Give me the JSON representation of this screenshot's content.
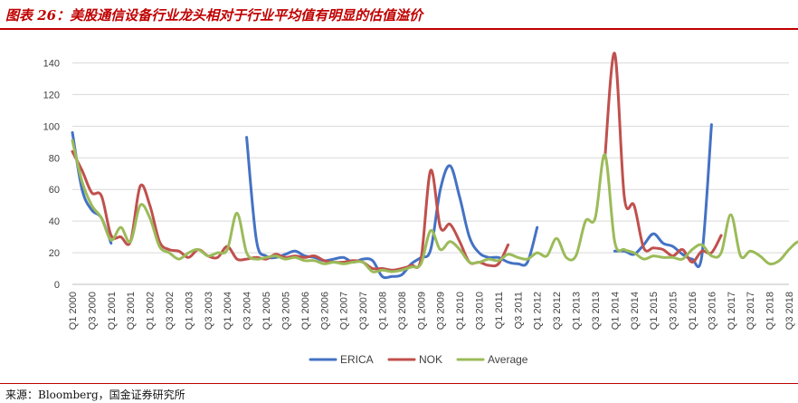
{
  "figure_title": "图表 26：美股通信设备行业龙头相对于行业平均值有明显的估值溢价",
  "source_note": "来源：Bloomberg，国金证券研究所",
  "chart_data": {
    "type": "line",
    "ylim": [
      0,
      150
    ],
    "yticks": [
      0,
      20,
      40,
      60,
      80,
      100,
      120,
      140
    ],
    "grid": "horizontal",
    "legend_position": "bottom",
    "xtick_labels": [
      "Q1 2000",
      "Q3 2000",
      "Q1 2001",
      "Q3 2001",
      "Q1 2002",
      "Q3 2002",
      "Q1 2003",
      "Q3 2003",
      "Q1 2004",
      "Q3 2004",
      "Q1 2005",
      "Q3 2005",
      "Q1 2006",
      "Q3 2006",
      "Q1 2007",
      "Q3 2007",
      "Q1 2008",
      "Q3 2008",
      "Q1 2009",
      "Q3 2009",
      "Q1 2010",
      "Q3 2010",
      "Q1 2011",
      "Q3 2011",
      "Q1 2012",
      "Q3 2012",
      "Q1 2013",
      "Q3 2013",
      "Q1 2014",
      "Q3 2014",
      "Q1 2015",
      "Q3 2015",
      "Q1 2016",
      "Q3 2016",
      "Q1 2017",
      "Q3 2017",
      "Q1 2018",
      "Q3 2018"
    ],
    "series": [
      {
        "name": "ERICA",
        "color": "#4472c4",
        "segments": [
          {
            "start": "Q1 2000",
            "values": [
              96,
              60,
              47,
              42,
              26
            ]
          },
          {
            "start": "Q3 2004",
            "values": [
              93,
              28,
              18,
              17,
              19,
              21,
              18,
              17,
              15,
              16,
              17,
              14,
              16,
              15,
              5,
              5,
              6,
              13,
              17,
              22,
              60,
              75,
              55,
              30,
              20,
              17,
              17,
              14,
              13,
              14,
              36
            ]
          },
          {
            "start": "Q1 2014",
            "values": [
              21,
              21,
              19,
              25,
              32,
              26,
              24,
              19,
              16,
              18,
              101
            ]
          }
        ]
      },
      {
        "name": "NOK",
        "color": "#c0504d",
        "segments": [
          {
            "start": "Q1 2000",
            "values": [
              84,
              72,
              58,
              56,
              31,
              30,
              27,
              62,
              50,
              27,
              22,
              21,
              17,
              22,
              18,
              17,
              24,
              16,
              16,
              17,
              16,
              19,
              17,
              18,
              17,
              18,
              15,
              14,
              14,
              15,
              14,
              10,
              10,
              9,
              10,
              12,
              16,
              72,
              36,
              38,
              27,
              14,
              14,
              12,
              13,
              25
            ]
          },
          {
            "start": "Q4 2013",
            "values": [
              80,
              146,
              55,
              50,
              23,
              23,
              22,
              18,
              22,
              14,
              21,
              20,
              31
            ]
          }
        ]
      },
      {
        "name": "Average",
        "color": "#9bbb59",
        "segments": [
          {
            "start": "Q1 2000",
            "values": [
              91,
              65,
              50,
              42,
              28,
              36,
              27,
              50,
              42,
              24,
              20,
              16,
              20,
              22,
              18,
              20,
              22,
              45,
              20,
              16,
              17,
              18,
              16,
              17,
              15,
              15,
              13,
              14,
              13,
              14,
              14,
              8,
              9,
              8,
              9,
              11,
              13,
              34,
              22,
              27,
              22,
              14,
              14,
              16,
              15,
              19,
              17,
              16,
              20,
              18,
              29,
              17,
              18,
              40,
              42,
              82,
              27,
              22,
              20,
              16,
              18,
              17,
              17,
              16,
              22,
              25,
              18,
              20,
              44,
              18,
              21,
              18,
              13,
              15,
              22,
              27,
              24
            ]
          }
        ]
      }
    ]
  }
}
